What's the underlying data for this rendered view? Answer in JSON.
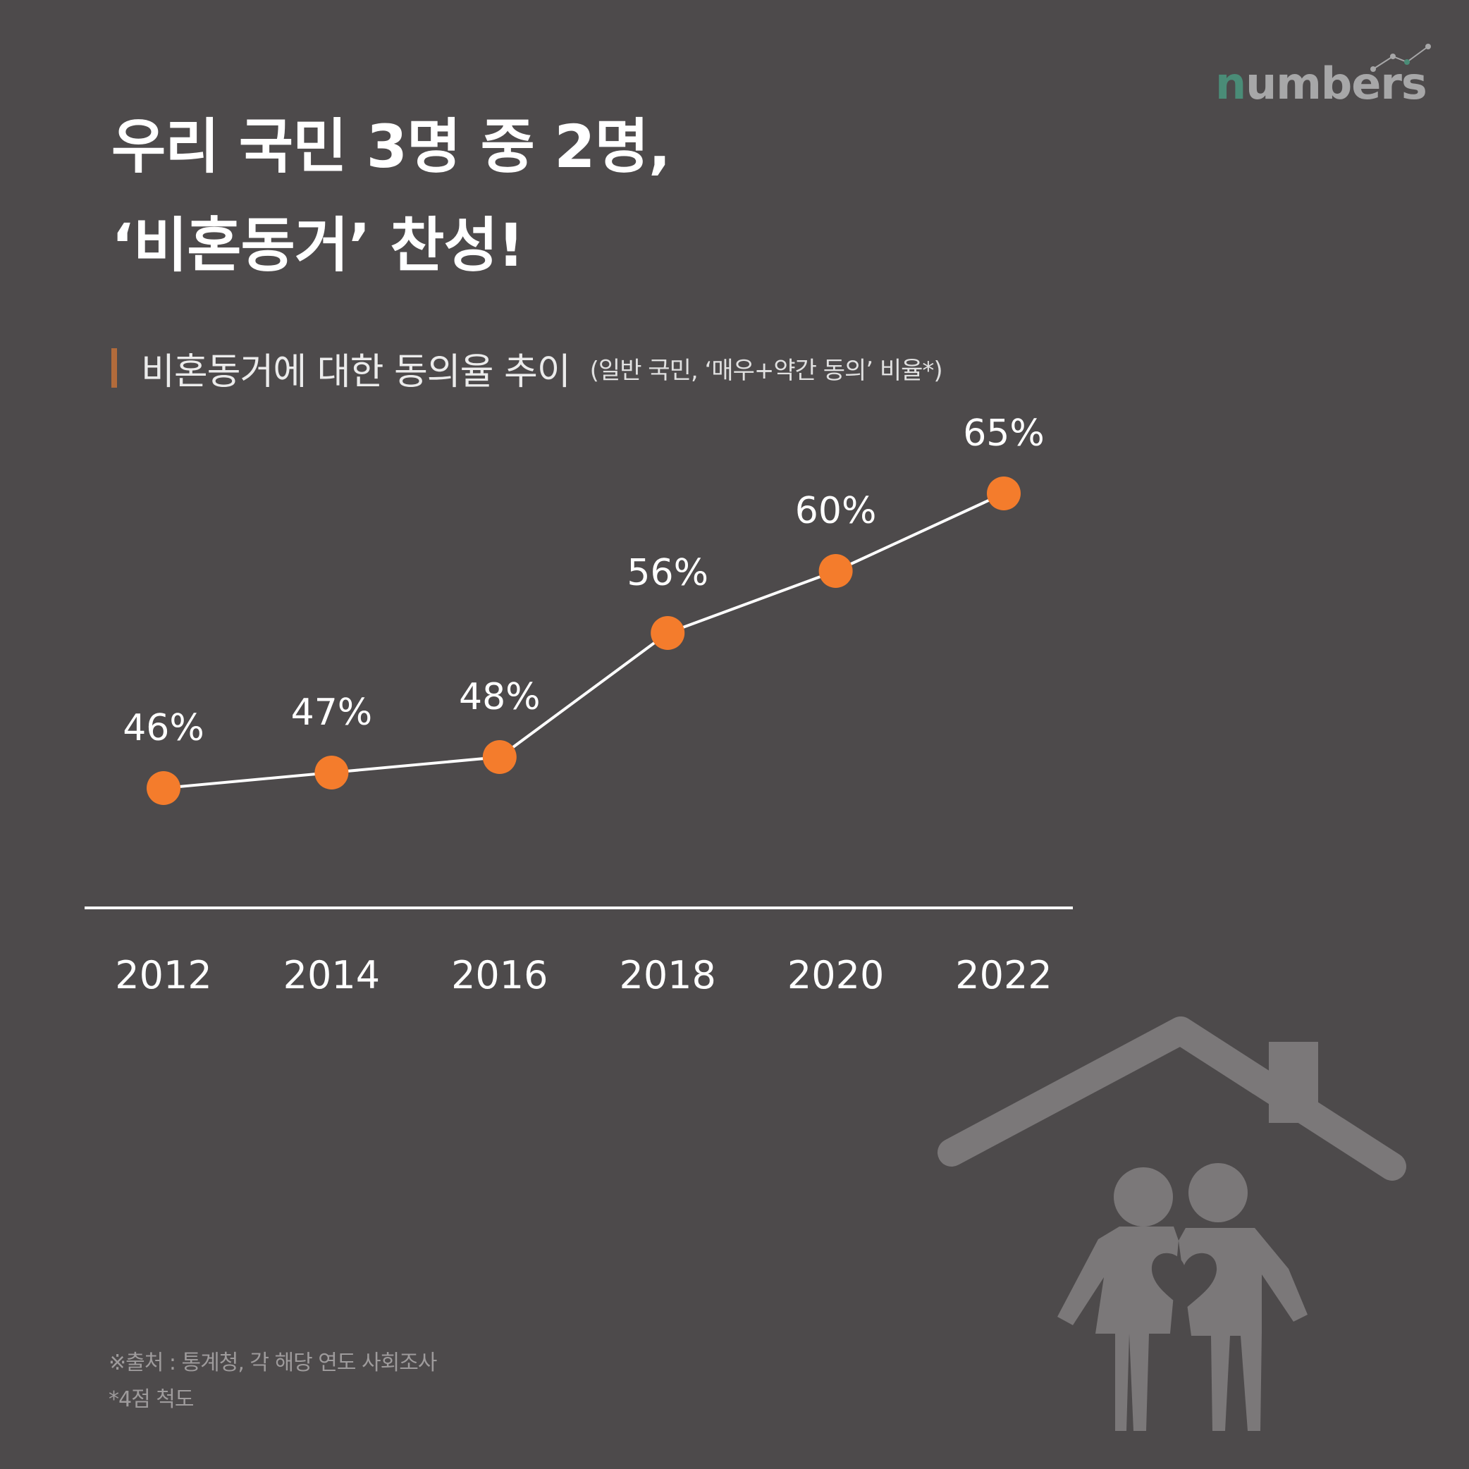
{
  "logo": {
    "first": "n",
    "rest": "umbers"
  },
  "title": {
    "line1": "우리 국민 3명 중 2명,",
    "line2": "‘비혼동거’ 찬성!"
  },
  "subtitle": {
    "main": "비혼동거에 대한 동의율 추이",
    "note": "(일반 국민, ‘매우+약간 동의’ 비율*)"
  },
  "chart_data": {
    "type": "line",
    "categories": [
      "2012",
      "2014",
      "2016",
      "2018",
      "2020",
      "2022"
    ],
    "values": [
      46,
      47,
      48,
      56,
      60,
      65
    ],
    "value_labels": [
      "46%",
      "47%",
      "48%",
      "56%",
      "60%",
      "65%"
    ],
    "ylim": [
      40,
      70
    ],
    "unit": "%",
    "line_color": "#ffffff",
    "marker_color": "#f47c2c",
    "grid": false
  },
  "footnotes": {
    "source": "※출처 : 통계청, 각 해당 연도 사회조사",
    "scale": "*4점 척도"
  },
  "colors": {
    "background": "#4d4a4b",
    "accent": "#b26b3b",
    "illustration": "#7b7879",
    "logo_green": "#4a8c77",
    "logo_gray": "#a7a7a8"
  }
}
